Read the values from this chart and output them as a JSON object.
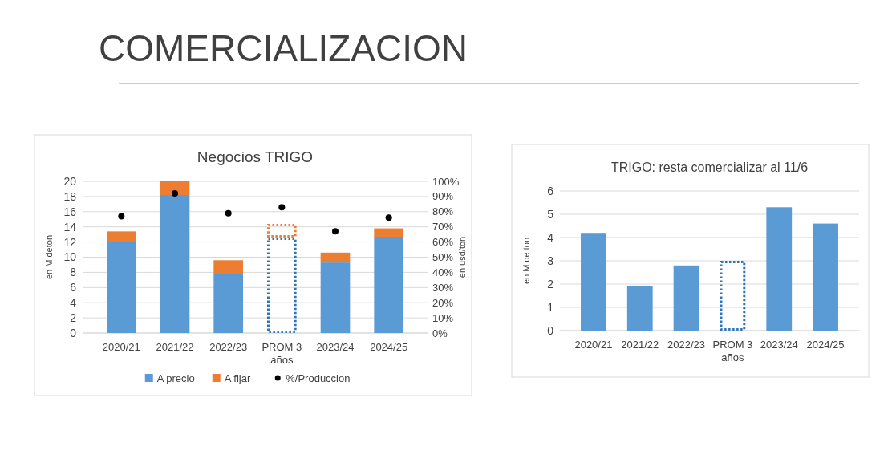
{
  "chart_data": [
    {
      "type": "other",
      "title": "COMERCIALIZACION"
    },
    {
      "type": "bar",
      "title": "Negocios TRIGO",
      "categories": [
        "2020/21",
        "2021/22",
        "2022/23",
        "PROM 3 años",
        "2023/24",
        "2024/25"
      ],
      "stacked": true,
      "ylabel": "en M deton",
      "y2label": "en usd/ton",
      "ylim": [
        0,
        20
      ],
      "yticks": [
        0,
        2,
        4,
        6,
        8,
        10,
        12,
        14,
        16,
        18,
        20
      ],
      "y2lim": [
        0,
        100
      ],
      "y2ticks": [
        {
          "value": 0,
          "label": "0%"
        },
        {
          "value": 10,
          "label": "10%"
        },
        {
          "value": 20,
          "label": "20%"
        },
        {
          "value": 30,
          "label": "30%"
        },
        {
          "value": 40,
          "label": "40%"
        },
        {
          "value": 50,
          "label": "50%"
        },
        {
          "value": 60,
          "label": "60%"
        },
        {
          "value": 70,
          "label": "70%"
        },
        {
          "value": 80,
          "label": "80%"
        },
        {
          "value": 90,
          "label": "90%"
        },
        {
          "value": 100,
          "label": "100%"
        }
      ],
      "grid": "y",
      "legend": "bottom",
      "series": [
        {
          "name": "A precio",
          "color": "#5b9bd5",
          "values": [
            12,
            18.2,
            7.8,
            null,
            9.3,
            12.7
          ]
        },
        {
          "name": "A fijar",
          "color": "#ed7d31",
          "values": [
            1.4,
            1.8,
            1.8,
            null,
            1.3,
            1.1
          ]
        },
        {
          "color": "#2e75b6",
          "line_style": "dotted",
          "values": [
            null,
            null,
            null,
            12.6,
            null,
            null
          ]
        },
        {
          "color": "#ed7d31",
          "line_style": "dotted",
          "values": [
            null,
            null,
            null,
            1.8,
            null,
            null
          ]
        },
        {
          "name": "%/Produccion",
          "type": "scatter",
          "axis": "y2",
          "marker": "circle",
          "color": "#000000",
          "values": [
            77,
            92,
            79,
            83,
            67,
            76
          ]
        }
      ]
    },
    {
      "type": "bar",
      "title": "TRIGO: resta comercializar al 11/6",
      "categories": [
        "2020/21",
        "2021/22",
        "2022/23",
        "PROM 3 años",
        "2023/24",
        "2024/25"
      ],
      "stacked": true,
      "ylabel": "en M de ton",
      "ylim": [
        0,
        6
      ],
      "yticks": [
        0,
        1,
        2,
        3,
        4,
        5,
        6
      ],
      "grid": "y",
      "series": [
        {
          "color": "#5b9bd5",
          "values": [
            4.2,
            1.9,
            2.8,
            null,
            5.3,
            4.6
          ]
        },
        {
          "color": "#2e75b6",
          "line_style": "dotted",
          "values": [
            null,
            null,
            null,
            3.0,
            null,
            null
          ]
        }
      ]
    }
  ]
}
